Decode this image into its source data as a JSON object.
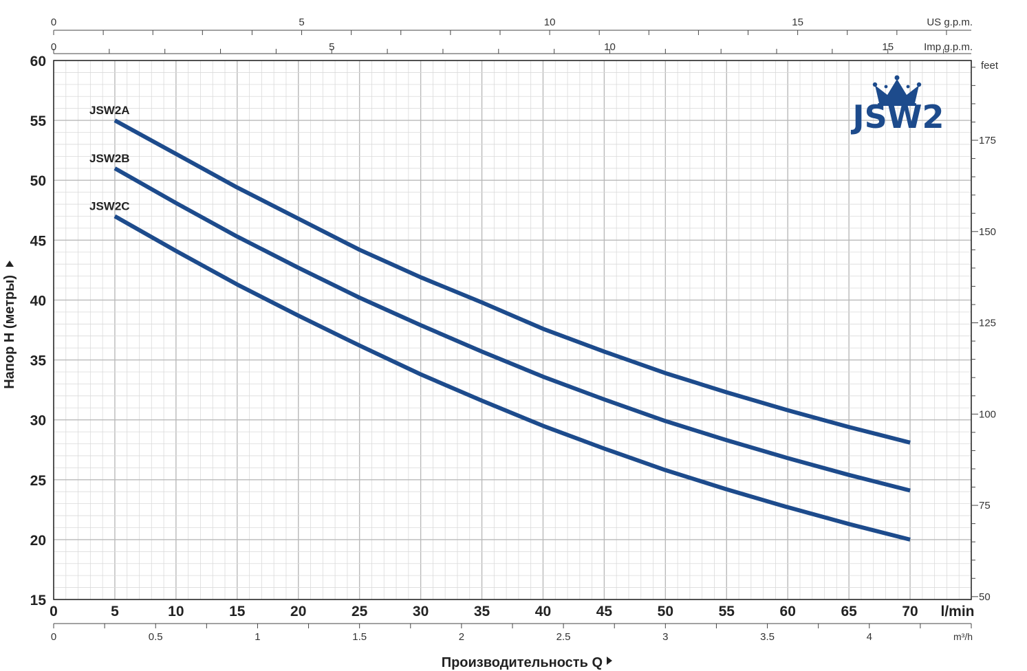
{
  "chart_data": {
    "type": "line",
    "title": "JSW2",
    "xlabel": "Производительность Q",
    "ylabel": "Напор H (метры)",
    "x_unit": "l/min",
    "xlim": [
      0,
      75
    ],
    "ylim": [
      15,
      60
    ],
    "x_ticks": [
      0,
      5,
      10,
      15,
      20,
      25,
      30,
      35,
      40,
      45,
      50,
      55,
      60,
      65,
      70
    ],
    "y_ticks": [
      15,
      20,
      25,
      30,
      35,
      40,
      45,
      50,
      55,
      60
    ],
    "grid": true,
    "secondary_axes": {
      "us_gpm": {
        "label": "US g.p.m.",
        "ticks": [
          0,
          5,
          10,
          15
        ]
      },
      "imp_gpm": {
        "label": "Imp g.p.m.",
        "ticks": [
          0,
          5,
          10,
          15
        ]
      },
      "m3h": {
        "label": "m³/h",
        "ticks": [
          "0",
          "0.5",
          "1",
          "1.5",
          "2",
          "2.5",
          "3",
          "3.5",
          "4"
        ]
      },
      "feet": {
        "label": "feet",
        "ticks": [
          50,
          75,
          100,
          125,
          150,
          175
        ]
      }
    },
    "series": [
      {
        "name": "JSW2A",
        "color": "#1d4b8c",
        "x": [
          5,
          10,
          15,
          20,
          25,
          30,
          35,
          40,
          45,
          50,
          55,
          60,
          65,
          70
        ],
        "y": [
          55,
          52.2,
          49.4,
          46.8,
          44.2,
          41.9,
          39.8,
          37.6,
          35.7,
          33.9,
          32.3,
          30.8,
          29.4,
          28.1
        ]
      },
      {
        "name": "JSW2B",
        "color": "#1d4b8c",
        "x": [
          5,
          10,
          15,
          20,
          25,
          30,
          35,
          40,
          45,
          50,
          55,
          60,
          65,
          70
        ],
        "y": [
          51,
          48.1,
          45.3,
          42.7,
          40.2,
          37.9,
          35.7,
          33.6,
          31.7,
          29.9,
          28.3,
          26.8,
          25.4,
          24.1
        ]
      },
      {
        "name": "JSW2C",
        "color": "#1d4b8c",
        "x": [
          5,
          10,
          15,
          20,
          25,
          30,
          35,
          40,
          45,
          50,
          55,
          60,
          65,
          70
        ],
        "y": [
          47,
          44.1,
          41.3,
          38.7,
          36.2,
          33.8,
          31.6,
          29.5,
          27.6,
          25.8,
          24.2,
          22.7,
          21.3,
          20
        ]
      }
    ]
  }
}
